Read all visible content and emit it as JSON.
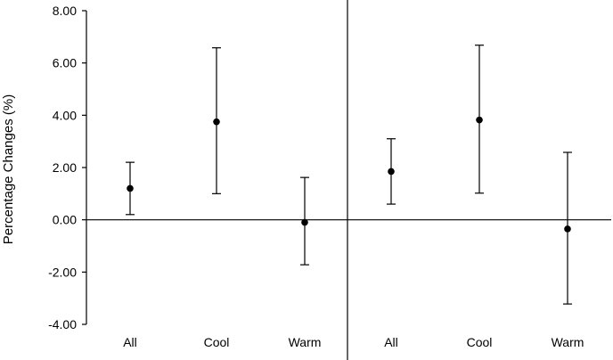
{
  "chart_data": {
    "type": "scatter",
    "ylabel": "Percentage Changes (%)",
    "ylim": [
      -4.0,
      8.0
    ],
    "yticks": [
      8.0,
      6.0,
      4.0,
      2.0,
      0.0,
      -2.0,
      -4.0
    ],
    "ytick_labels": [
      "8.00",
      "6.00",
      "4.00",
      "2.00",
      "0.00",
      "-2.00",
      "-4.00"
    ],
    "grid": false,
    "panels": [
      {
        "categories": [
          "All",
          "Cool",
          "Warm"
        ],
        "estimates": [
          1.2,
          3.75,
          -0.1
        ],
        "lower": [
          0.2,
          1.0,
          -1.72
        ],
        "upper": [
          2.2,
          6.58,
          1.62
        ]
      },
      {
        "categories": [
          "All",
          "Cool",
          "Warm"
        ],
        "estimates": [
          1.85,
          3.82,
          -0.35
        ],
        "lower": [
          0.6,
          1.02,
          -3.22
        ],
        "upper": [
          3.1,
          6.68,
          2.58
        ]
      }
    ]
  }
}
